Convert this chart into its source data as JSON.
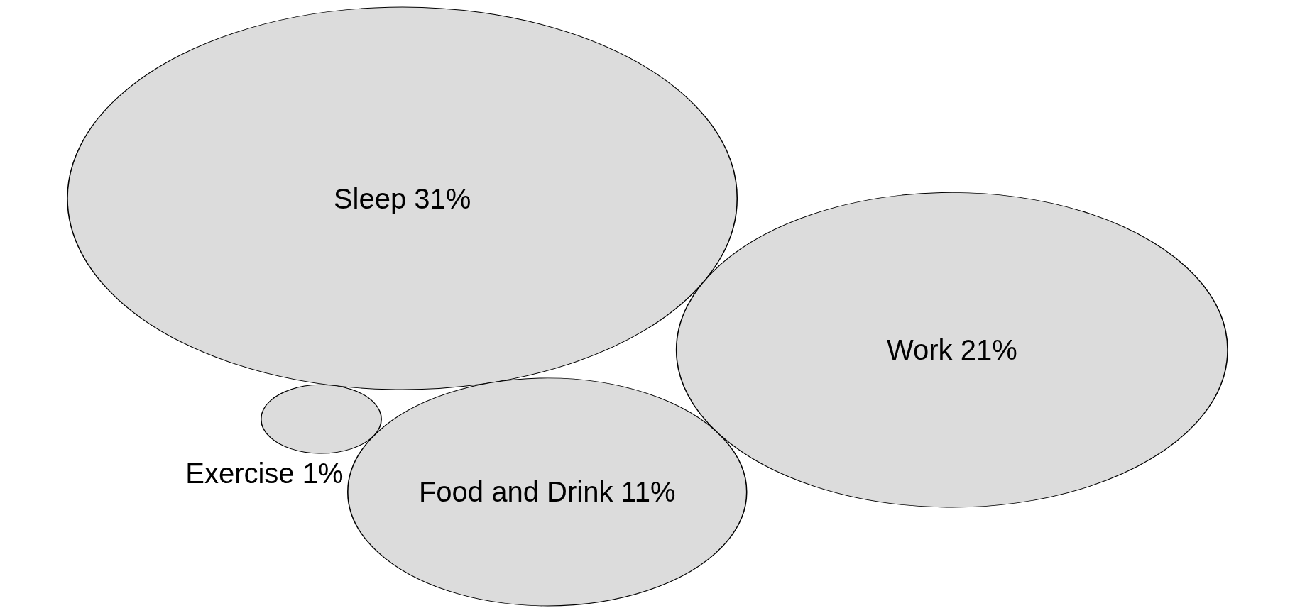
{
  "chart_data": {
    "type": "other",
    "categories": [
      "Sleep",
      "Work",
      "Food and Drink",
      "Exercise"
    ],
    "values": [
      31,
      21,
      11,
      1
    ],
    "value_labels": [
      "31%",
      "21%",
      "11%",
      "1%"
    ],
    "color": "#dcdcdc"
  }
}
